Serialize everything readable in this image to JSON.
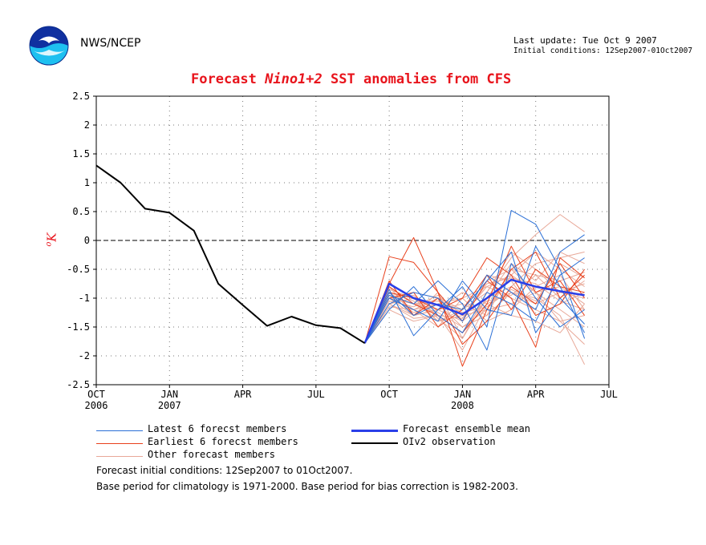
{
  "header": {
    "org": "NWS/NCEP",
    "update_line1": "Last update: Tue Oct 9 2007",
    "update_line2": "Initial conditions: 12Sep2007-01Oct2007"
  },
  "title": {
    "prefix": "Forecast ",
    "region": "Nino1+2",
    "suffix": " SST anomalies from CFS"
  },
  "colors": {
    "latest": "#2a6fd6",
    "earliest": "#e8401c",
    "other": "#e8a898",
    "mean": "#2a3fe8",
    "obs": "#000000",
    "title": "#e8141c"
  },
  "legend": {
    "latest": "Latest 6 forecst members",
    "earliest": "Earliest 6 forecst members",
    "other": "Other forecast members",
    "mean": "Forecast ensemble mean",
    "obs": "OIv2 observation"
  },
  "notes": {
    "line1": "Forecast initial conditions: 12Sep2007 to 01Oct2007.",
    "line2": "Base period for climatology is 1971-2000. Base period for bias correction is 1982-2003."
  },
  "chart_data": {
    "type": "line",
    "ylabel": "oK",
    "ylim": [
      -2.5,
      2.5
    ],
    "yticks": [
      2.5,
      2,
      1.5,
      1,
      0.5,
      0,
      -0.5,
      -1,
      -1.5,
      -2,
      -2.5
    ],
    "xlim": [
      0,
      21
    ],
    "xticks": [
      {
        "m": 0,
        "label": "OCT",
        "year": "2006"
      },
      {
        "m": 3,
        "label": "JAN",
        "year": "2007"
      },
      {
        "m": 6,
        "label": "APR",
        "year": ""
      },
      {
        "m": 9,
        "label": "JUL",
        "year": ""
      },
      {
        "m": 12,
        "label": "OCT",
        "year": ""
      },
      {
        "m": 15,
        "label": "JAN",
        "year": "2008"
      },
      {
        "m": 18,
        "label": "APR",
        "year": ""
      },
      {
        "m": 21,
        "label": "JUL",
        "year": ""
      }
    ],
    "grid": true,
    "observation": {
      "name": "OIv2 observation",
      "x": [
        0,
        1,
        2,
        3,
        4,
        5,
        6,
        7,
        8,
        9,
        10,
        11
      ],
      "y": [
        1.3,
        1.0,
        0.55,
        0.48,
        0.17,
        -0.75,
        -1.12,
        -1.48,
        -1.32,
        -1.47,
        -1.52,
        -1.78
      ]
    },
    "ensemble_mean": {
      "name": "Forecast ensemble mean",
      "x": [
        11,
        12,
        13,
        14,
        15,
        16,
        17,
        18,
        19,
        20
      ],
      "y": [
        -1.78,
        -0.75,
        -1.0,
        -1.12,
        -1.28,
        -1.0,
        -0.68,
        -0.8,
        -0.88,
        -0.95
      ]
    },
    "members_x": [
      11,
      12,
      13,
      14,
      15,
      16,
      17,
      18,
      19,
      20
    ],
    "latest_members": [
      [
        -1.78,
        -0.85,
        -1.65,
        -1.2,
        -0.8,
        -1.5,
        0.52,
        0.28,
        -0.5,
        -1.7
      ],
      [
        -1.78,
        -1.1,
        -0.9,
        -1.0,
        -1.4,
        -0.6,
        -0.9,
        -1.2,
        -0.2,
        0.1
      ],
      [
        -1.78,
        -0.95,
        -1.1,
        -0.7,
        -1.1,
        -1.9,
        -0.4,
        -1.0,
        -1.5,
        -1.2
      ],
      [
        -1.78,
        -1.0,
        -1.2,
        -1.4,
        -0.7,
        -1.2,
        -1.3,
        -0.1,
        -0.8,
        -1.6
      ],
      [
        -1.78,
        -1.2,
        -0.8,
        -1.3,
        -1.6,
        -0.9,
        -1.1,
        -1.4,
        -0.6,
        -0.3
      ],
      [
        -1.78,
        -0.9,
        -1.3,
        -1.1,
        -1.2,
        -0.7,
        -0.2,
        -1.6,
        -1.0,
        -1.45
      ]
    ],
    "earliest_members": [
      [
        -1.78,
        -0.28,
        -0.38,
        -0.9,
        -1.4,
        -0.7,
        -1.0,
        -1.85,
        -0.3,
        -0.65
      ],
      [
        -1.78,
        -0.75,
        0.05,
        -0.9,
        -2.18,
        -1.2,
        -0.5,
        -0.2,
        -1.0,
        -0.6
      ],
      [
        -1.78,
        -0.8,
        -1.1,
        -1.3,
        -1.6,
        -1.1,
        -0.1,
        -0.9,
        -0.7,
        -1.3
      ],
      [
        -1.78,
        -1.0,
        -0.9,
        -1.5,
        -1.2,
        -0.6,
        -1.2,
        -0.5,
        -0.8,
        -0.9
      ],
      [
        -1.78,
        -0.7,
        -1.3,
        -1.0,
        -1.8,
        -1.4,
        -0.8,
        -1.1,
        -0.4,
        -1.0
      ],
      [
        -1.78,
        -0.9,
        -1.0,
        -1.2,
        -1.0,
        -0.3,
        -0.6,
        -1.3,
        -1.1,
        -0.5
      ]
    ],
    "other_members": [
      [
        -1.78,
        -0.9,
        -1.2,
        -1.1,
        -1.5,
        -1.2,
        -0.6,
        -0.9,
        -0.8,
        -1.1
      ],
      [
        -1.78,
        -1.0,
        -1.3,
        -0.9,
        -1.7,
        -1.0,
        -0.8,
        -0.4,
        -0.3,
        -0.2
      ],
      [
        -1.78,
        -1.1,
        -1.0,
        -1.4,
        -1.3,
        -0.8,
        -1.0,
        -1.2,
        -1.4,
        -1.8
      ],
      [
        -1.78,
        -0.8,
        -1.1,
        -1.2,
        -1.1,
        -1.3,
        -0.5,
        -0.6,
        -1.0,
        -0.7
      ],
      [
        -1.78,
        -1.2,
        -1.4,
        -1.3,
        -1.9,
        -1.1,
        -0.9,
        -1.0,
        -1.3,
        -2.15
      ],
      [
        -1.78,
        -1.0,
        -0.9,
        -1.0,
        -1.2,
        -0.9,
        -0.3,
        0.1,
        0.45,
        0.15
      ],
      [
        -1.78,
        -0.9,
        -1.2,
        -1.5,
        -1.0,
        -1.4,
        -1.2,
        -0.8,
        -0.6,
        -1.2
      ],
      [
        -1.78,
        -1.1,
        -1.3,
        -1.2,
        -1.4,
        -0.6,
        -0.7,
        -1.3,
        -1.1,
        -0.9
      ],
      [
        -1.78,
        -0.85,
        -1.0,
        -1.3,
        -1.6,
        -1.0,
        -0.4,
        -0.7,
        -0.2,
        -0.4
      ],
      [
        -1.78,
        -1.05,
        -1.15,
        -0.95,
        -1.3,
        -1.2,
        -1.1,
        -0.9,
        -1.2,
        -1.5
      ],
      [
        -1.78,
        -0.95,
        -1.25,
        -1.1,
        -1.0,
        -0.8,
        -0.6,
        -0.2,
        -0.5,
        -0.8
      ],
      [
        -1.78,
        -1.0,
        -1.1,
        -1.25,
        -1.5,
        -1.3,
        -0.9,
        -1.1,
        -0.9,
        -1.0
      ],
      [
        -1.78,
        -0.9,
        -1.05,
        -1.4,
        -1.2,
        -0.7,
        -0.5,
        -0.9,
        -1.4,
        -1.3
      ],
      [
        -1.78,
        -1.15,
        -1.2,
        -1.0,
        -1.4,
        -1.05,
        -0.95,
        -0.6,
        -0.7,
        -0.55
      ],
      [
        -1.78,
        -0.8,
        -1.3,
        -1.2,
        -0.9,
        -1.1,
        -1.3,
        -1.4,
        -1.6,
        -1.1
      ],
      [
        -1.78,
        -1.0,
        -0.95,
        -1.35,
        -1.7,
        -0.9,
        -0.2,
        -0.5,
        -0.9,
        -0.75
      ],
      [
        -1.78,
        -0.95,
        -1.1,
        -1.05,
        -1.25,
        -1.15,
        -0.85,
        -1.05,
        -0.4,
        -0.65
      ],
      [
        -1.78,
        -1.1,
        -1.35,
        -1.3,
        -1.35,
        -0.75,
        -0.65,
        -0.75,
        -1.05,
        -1.2
      ]
    ]
  }
}
